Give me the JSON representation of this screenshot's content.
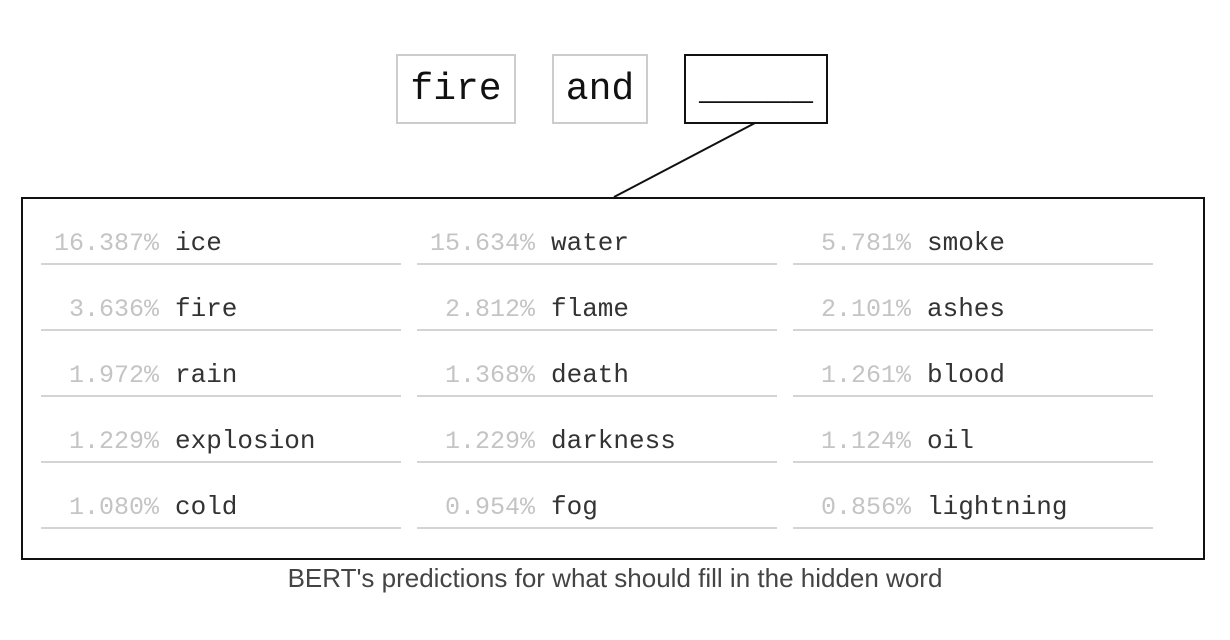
{
  "sentence": {
    "tokens": [
      "fire",
      "and",
      "_____"
    ]
  },
  "predictions": [
    {
      "percent": "16.387%",
      "word": "ice"
    },
    {
      "percent": "15.634%",
      "word": "water"
    },
    {
      "percent": "5.781%",
      "word": "smoke"
    },
    {
      "percent": "3.636%",
      "word": "fire"
    },
    {
      "percent": "2.812%",
      "word": "flame"
    },
    {
      "percent": "2.101%",
      "word": "ashes"
    },
    {
      "percent": "1.972%",
      "word": "rain"
    },
    {
      "percent": "1.368%",
      "word": "death"
    },
    {
      "percent": "1.261%",
      "word": "blood"
    },
    {
      "percent": "1.229%",
      "word": "explosion"
    },
    {
      "percent": "1.229%",
      "word": "darkness"
    },
    {
      "percent": "1.124%",
      "word": "oil"
    },
    {
      "percent": "1.080%",
      "word": "cold"
    },
    {
      "percent": "0.954%",
      "word": "fog"
    },
    {
      "percent": "0.856%",
      "word": "lightning"
    }
  ],
  "caption": "BERT's predictions for what should fill in the hidden word",
  "colors": {
    "masked_border": "#111111",
    "token_border": "#cccccc",
    "percent_text": "#c4c4c4",
    "word_text": "#333333",
    "divider": "#d4d4d4"
  }
}
